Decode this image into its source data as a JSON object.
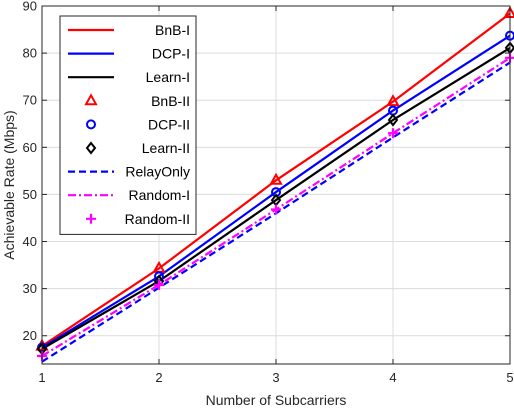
{
  "chart_data": {
    "type": "line",
    "title": "",
    "xlabel": "Number of Subcarriers",
    "ylabel": "Achievable Rate (Mbps)",
    "x": [
      1,
      2,
      3,
      4,
      5
    ],
    "xlim": [
      1,
      5
    ],
    "ylim": [
      14,
      90
    ],
    "xticks": [
      1,
      2,
      3,
      4,
      5
    ],
    "yticks": [
      20,
      30,
      40,
      50,
      60,
      70,
      80,
      90
    ],
    "grid": true,
    "legend_position": "top-left",
    "series": [
      {
        "name": "BnB-I",
        "values": [
          17.8,
          34.3,
          53.0,
          69.7,
          88.4
        ],
        "color": "#ff0000",
        "style": "solid",
        "marker": "none"
      },
      {
        "name": "DCP-I",
        "values": [
          17.5,
          32.6,
          50.5,
          67.8,
          83.7
        ],
        "color": "#0000ff",
        "style": "solid",
        "marker": "none"
      },
      {
        "name": "Learn-I",
        "values": [
          17.2,
          31.6,
          48.8,
          65.8,
          81.1
        ],
        "color": "#000000",
        "style": "solid",
        "marker": "none"
      },
      {
        "name": "BnB-II",
        "values": [
          17.8,
          34.3,
          53.0,
          69.7,
          88.4
        ],
        "color": "#ff0000",
        "style": "none",
        "marker": "triangle"
      },
      {
        "name": "DCP-II",
        "values": [
          17.5,
          32.6,
          50.5,
          67.8,
          83.7
        ],
        "color": "#0000ff",
        "style": "none",
        "marker": "circle"
      },
      {
        "name": "Learn-II",
        "values": [
          17.2,
          31.6,
          48.8,
          65.8,
          81.1
        ],
        "color": "#000000",
        "style": "none",
        "marker": "diamond"
      },
      {
        "name": "RelayOnly",
        "values": [
          14.5,
          30.2,
          46.0,
          62.1,
          78.0
        ],
        "color": "#0000ff",
        "style": "dashed",
        "marker": "none"
      },
      {
        "name": "Random-I",
        "values": [
          15.7,
          30.8,
          46.8,
          63.0,
          79.0
        ],
        "color": "#ff00ff",
        "style": "dashdot",
        "marker": "none"
      },
      {
        "name": "Random-II",
        "values": [
          15.7,
          30.8,
          46.8,
          63.0,
          79.0
        ],
        "color": "#ff00ff",
        "style": "none",
        "marker": "plus"
      }
    ]
  }
}
